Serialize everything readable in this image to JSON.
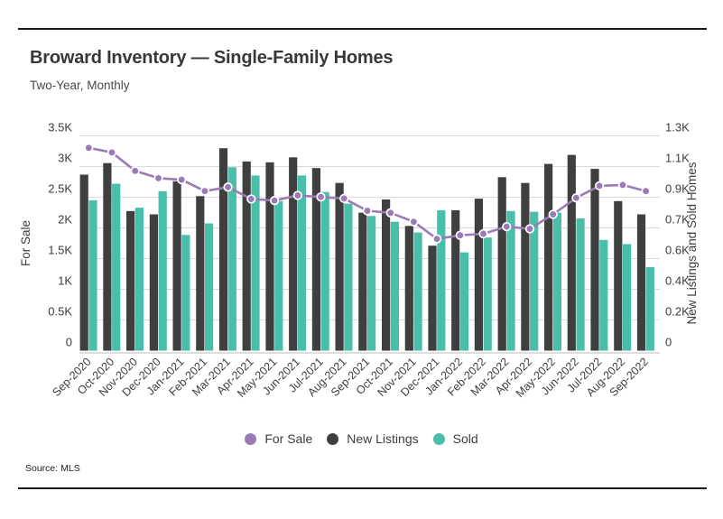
{
  "page": {
    "title": "Broward Inventory — Single-Family Homes",
    "subtitle": "Two-Year, Monthly",
    "source": "Source: MLS"
  },
  "colors": {
    "for_sale": "#9a7bb8",
    "new_listings": "#3f3f3f",
    "sold": "#49bea9",
    "grid": "#dadada",
    "axis_line": "#c9c9c9",
    "text": "#3d3d3d",
    "rule": "#1a1a1a"
  },
  "chart_data": {
    "type": "combo",
    "title": "Broward Inventory — Single-Family Homes",
    "subtitle": "Two-Year, Monthly",
    "grid": true,
    "legend_position": "bottom",
    "categories": [
      "Sep-2020",
      "Oct-2020",
      "Nov-2020",
      "Dec-2020",
      "Jan-2021",
      "Feb-2021",
      "Mar-2021",
      "Apr-2021",
      "May-2021",
      "Jun-2021",
      "Jul-2021",
      "Aug-2021",
      "Sep-2021",
      "Oct-2021",
      "Nov-2021",
      "Dec-2021",
      "Jan-2022",
      "Feb-2022",
      "Mar-2022",
      "Apr-2022",
      "May-2022",
      "Jun-2022",
      "Jul-2022",
      "Aug-2022",
      "Sep-2022"
    ],
    "series": [
      {
        "name": "For Sale",
        "type": "line",
        "axis": "left",
        "color_key": "for_sale",
        "values": [
          3305,
          3230,
          2930,
          2810,
          2785,
          2600,
          2665,
          2470,
          2445,
          2530,
          2505,
          2480,
          2280,
          2245,
          2100,
          1820,
          1880,
          1905,
          2020,
          1985,
          2220,
          2490,
          2685,
          2700,
          2600
        ]
      },
      {
        "name": "New Listings",
        "type": "bar",
        "axis": "right",
        "color_key": "new_listings",
        "values": [
          1065,
          1135,
          845,
          825,
          1025,
          935,
          1225,
          1145,
          1140,
          1170,
          1105,
          1015,
          835,
          915,
          755,
          635,
          850,
          920,
          1050,
          1015,
          1130,
          1185,
          1100,
          905,
          825
        ]
      },
      {
        "name": "Sold",
        "type": "bar",
        "axis": "right",
        "color_key": "sold",
        "values": [
          910,
          1010,
          865,
          965,
          700,
          770,
          1110,
          1060,
          905,
          1060,
          960,
          890,
          815,
          780,
          715,
          850,
          595,
          685,
          845,
          840,
          835,
          800,
          670,
          645,
          505
        ]
      }
    ],
    "left_axis": {
      "title": "For Sale",
      "max": 3500,
      "min": 0,
      "ticks": [
        "0",
        "0.5K",
        "1K",
        "1.5K",
        "2K",
        "2.5K",
        "3K",
        "3.5K"
      ]
    },
    "right_axis": {
      "title": "New Listings and Sold Homes",
      "max": 1300,
      "min": 0,
      "ticks": [
        "0",
        "0.2K",
        "0.4K",
        "0.6K",
        "0.7K",
        "0.9K",
        "1.1K",
        "1.3K"
      ]
    }
  }
}
